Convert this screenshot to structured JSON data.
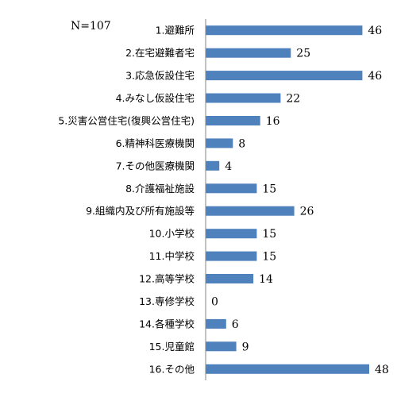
{
  "chart_data": {
    "type": "bar",
    "orientation": "horizontal",
    "note": "N=107",
    "categories": [
      "1.避難所",
      "2.在宅避難者宅",
      "3.応急仮設住宅",
      "4.みなし仮設住宅",
      "5.災害公営住宅(復興公営住宅)",
      "6.精神科医療機関",
      "7.その他医療機関",
      "8.介護福祉施設",
      "9.組織内及び所有施設等",
      "10.小学校",
      "11.中学校",
      "12.高等学校",
      "13.専修学校",
      "14.各種学校",
      "15.児童館",
      "16.その他"
    ],
    "values": [
      46,
      25,
      46,
      22,
      16,
      8,
      4,
      15,
      26,
      15,
      15,
      14,
      0,
      6,
      9,
      48
    ],
    "xlim": [
      0,
      48
    ],
    "bar_color": "#4f81bd",
    "axis_color": "#868686",
    "grid": false,
    "legend": "none"
  }
}
